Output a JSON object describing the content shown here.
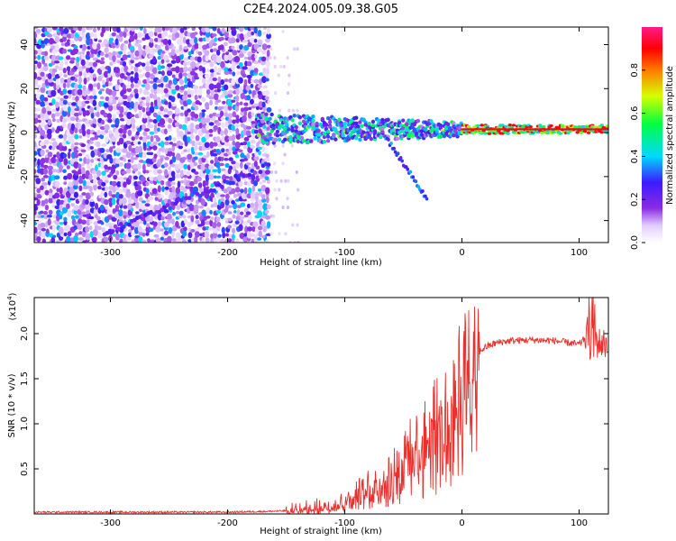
{
  "title": "C2E4.2024.005.09.38.G05",
  "colors": {
    "background": "#ffffff",
    "snr_line": "#e8302c",
    "axis": "#000000"
  },
  "chart_data": [
    {
      "type": "heatmap",
      "name_id": "spectrogram",
      "xlabel": "Height of straight line (km)",
      "ylabel": "Frequency (Hz)",
      "xlim": [
        -365,
        125
      ],
      "ylim": [
        -50,
        48
      ],
      "xticks": [
        -300,
        -200,
        -100,
        0,
        100
      ],
      "yticks": [
        -40,
        -20,
        0,
        20,
        40
      ],
      "colorbar": {
        "label": "Normalized spectral amplitude",
        "range": [
          0,
          1
        ],
        "ticks": [
          "0.0",
          "0.2",
          "0.4",
          "0.6",
          "0.8"
        ],
        "colormap": [
          "#ffffff",
          "#e2ccff",
          "#8a2be2",
          "#3b1bff",
          "#00d9ff",
          "#00ff40",
          "#d6ff00",
          "#ff7a00",
          "#ff0000",
          "#ff1a8c"
        ]
      },
      "features": {
        "noise_region_x": [
          -365,
          -165
        ],
        "noise_level": 0.35,
        "main_signal_freq": 1.5,
        "main_signal_x": [
          -175,
          125
        ],
        "main_signal_peak_amplitude": 0.9,
        "upward_trend_from": [
          -305,
          -45
        ],
        "upward_trend_to": [
          -165,
          -15
        ],
        "downward_branch_from": [
          -65,
          -2
        ],
        "downward_branch_to": [
          -30,
          -30
        ]
      }
    },
    {
      "type": "line",
      "name_id": "snr",
      "xlabel": "Height of straight line (km)",
      "ylabel": "SNR (10 * v/v)",
      "y_multiplier": "(x10",
      "y_multiplier_exp": "4",
      "y_multiplier_close": ")",
      "xlim": [
        -365,
        125
      ],
      "ylim": [
        0,
        2.4
      ],
      "xticks": [
        -300,
        -200,
        -100,
        0,
        100
      ],
      "yticks": [
        0.5,
        1.0,
        1.5,
        2.0
      ],
      "ytick_labels": [
        "0.5",
        "1.0",
        "1.5",
        "2.0"
      ],
      "series": [
        {
          "x": [
            -365,
            -300,
            -250,
            -200,
            -160,
            -140,
            -120,
            -100,
            -80,
            -60,
            -40,
            -20,
            -10,
            0,
            10,
            20,
            30,
            40,
            60,
            80,
            90,
            100,
            105,
            110,
            115,
            125
          ],
          "y": [
            0.02,
            0.02,
            0.02,
            0.02,
            0.03,
            0.04,
            0.08,
            0.15,
            0.3,
            0.5,
            0.8,
            1.1,
            1.3,
            1.6,
            1.75,
            1.85,
            1.9,
            1.92,
            1.93,
            1.92,
            1.9,
            1.88,
            1.95,
            2.1,
            1.9,
            1.88
          ]
        }
      ]
    }
  ]
}
